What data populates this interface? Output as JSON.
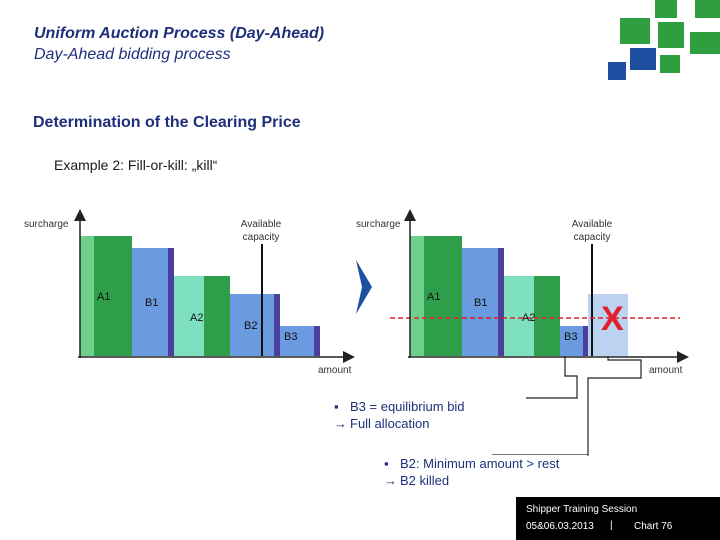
{
  "header": {
    "title": "Uniform Auction Process (Day-Ahead)",
    "subtitle": "Day-Ahead bidding process"
  },
  "section_title": "Determination of the Clearing Price",
  "example_title": "Example 2: Fill-or-kill: „kill“",
  "left_chart": {
    "y_axis_label": "surcharge",
    "x_axis_label": "amount",
    "capacity_label_1": "Available",
    "capacity_label_2": "capacity",
    "blocks": [
      "A1",
      "B1",
      "A2",
      "B2",
      "B3"
    ]
  },
  "right_chart": {
    "y_axis_label": "surcharge",
    "x_axis_label": "amount",
    "capacity_label_1": "Available",
    "capacity_label_2": "capacity",
    "blocks": [
      "A1",
      "B1",
      "A2",
      "B3"
    ],
    "killed_mark": "X"
  },
  "notes": {
    "note1_bullet": "B3 = equilibrium bid",
    "note1_result": "Full allocation",
    "note2_bullet": "B2: Minimum amount > rest",
    "note2_result": "B2 killed"
  },
  "footer": {
    "line1": "Shipper Training Session",
    "date": "05&06.03.2013",
    "separator": "|",
    "chart": "Chart 76"
  },
  "colors": {
    "title": "#1f2f7a",
    "dark_green": "#2e9e4b",
    "blue": "#6a9be0",
    "mint": "#7fe0c0",
    "purple": "#4b3f9e",
    "clearing_line": "#e0202a",
    "logo_green": "#2f9e3f",
    "logo_blue": "#1f4fa0"
  }
}
